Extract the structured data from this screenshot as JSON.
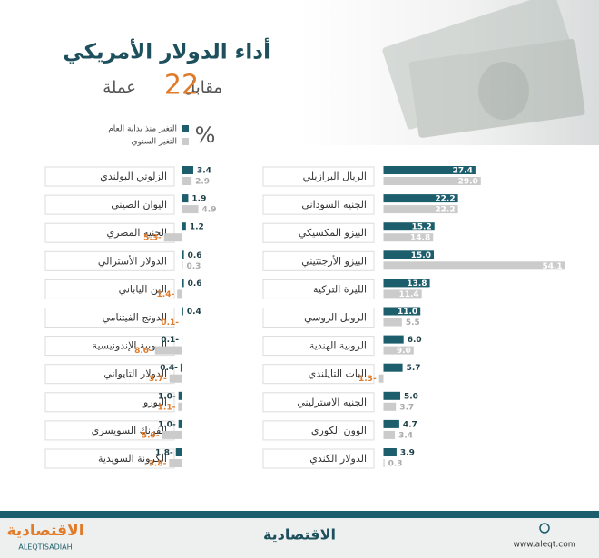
{
  "header": {
    "title": "أداء الدولار الأمريكي",
    "subtitle_before": "مقابل",
    "subtitle_number": 22,
    "subtitle_after": "عملة"
  },
  "legend": {
    "unit": "%"
  },
  "chart_data": [
    {
      "type": "bar",
      "orientation": "horizontal",
      "categories": [
        "الريال البرازيلي",
        "الجنيه السوداني",
        "البيزو المكسيكي",
        "البيزو الأرجنتيني",
        "الليرة التركية",
        "الروبل الروسي",
        "الروبية الهندية",
        "البات التايلندي",
        "الجنيه الاسترليني",
        "الوون الكوري",
        "الدولار الكندي"
      ],
      "xlim": [
        -5,
        55
      ],
      "series": [
        {
          "name": "التغير منذ بداية العام",
          "color": "#1d5e6c",
          "values": [
            27.4,
            22.2,
            15.2,
            15.0,
            13.8,
            11.0,
            6.0,
            5.7,
            5.0,
            4.7,
            3.9
          ],
          "value_labels": [
            "27.4",
            "22.2",
            "15.2",
            "15.0",
            "13.8",
            "11.0",
            "6.0",
            "5.7",
            "5.0",
            "4.7",
            "3.9"
          ]
        },
        {
          "name": "التغير السنوي",
          "color": "#cbcbcb",
          "values": [
            29.0,
            22.2,
            14.8,
            54.1,
            11.4,
            5.5,
            9.0,
            -1.3,
            3.7,
            3.4,
            0.3
          ],
          "value_labels": [
            "29.0",
            "22.2",
            "14.8",
            "54.1",
            "11.4",
            "5.5",
            "9.0",
            "1.3-",
            "3.7",
            "3.4",
            "0.3"
          ]
        }
      ]
    },
    {
      "type": "bar",
      "orientation": "horizontal",
      "categories": [
        "الزلوتي البولندي",
        "اليوان الصيني",
        "الجنيه المصري",
        "الدولار الأسترالي",
        "الين الياباني",
        "الدونج الفيتنامي",
        "الروبية الإندونيسية",
        "الدولار التايواني",
        "اليورو",
        "الفرنك السويسري",
        "الكرونة السويدية"
      ],
      "xlim": [
        -12,
        8
      ],
      "series": [
        {
          "color": "#1d5e6c",
          "values": [
            3.4,
            1.9,
            1.2,
            0.6,
            0.6,
            0.4,
            -0.1,
            -0.4,
            -1.0,
            -1.0,
            -1.8
          ],
          "value_labels": [
            "3.4",
            "1.9",
            "1.2",
            "0.6",
            "0.6",
            "0.4",
            "0.1-",
            "0.4-",
            "1.0-",
            "1.0-",
            "1.8-"
          ]
        },
        {
          "color": "#cbcbcb",
          "values": [
            2.9,
            4.9,
            -5.3,
            0.3,
            -1.4,
            -0.1,
            -8.0,
            -3.7,
            -1.1,
            -5.9,
            -3.8
          ],
          "value_labels": [
            "2.9",
            "4.9",
            "5.3-",
            "0.3",
            "1.4-",
            "0.1-",
            "8.0-",
            "3.7-",
            "1.1-",
            "5.9-",
            "3.8-"
          ]
        }
      ]
    }
  ],
  "footer": {
    "logo_left": "الاقتصادية",
    "logo_left_latin": "ALEQTISADIAH",
    "logo_center": "الاقتصادية",
    "url": "www.aleqt.com"
  }
}
